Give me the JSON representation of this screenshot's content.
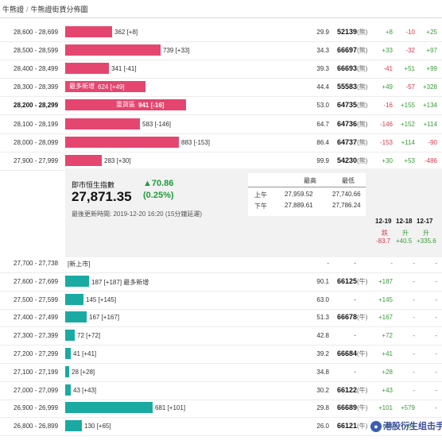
{
  "breadcrumb": {
    "first": "牛熊證",
    "separator": "/",
    "second": "牛熊證街貨分佈圖"
  },
  "upper_rows": [
    {
      "range": "28,600 - 28,699",
      "value": 362,
      "label": "362 [+8]",
      "inside": "",
      "pct": "29.9",
      "code": "52139",
      "tag": "(熊)",
      "c1": "+8",
      "c2": "-10",
      "c3": "+25",
      "bold": false
    },
    {
      "range": "28,500 - 28,599",
      "value": 739,
      "label": "739 [+33]",
      "inside": "",
      "pct": "34.3",
      "code": "66697",
      "tag": "(熊)",
      "c1": "+33",
      "c2": "-32",
      "c3": "+97",
      "bold": false
    },
    {
      "range": "28,400 - 28,499",
      "value": 341,
      "label": "341 [-41]",
      "inside": "",
      "pct": "39.3",
      "code": "66693",
      "tag": "(熊)",
      "c1": "-41",
      "c2": "+51",
      "c3": "+99",
      "bold": false
    },
    {
      "range": "28,300 - 28,399",
      "value": 624,
      "label": "624 [+49]",
      "inside": "最多新增",
      "pct": "44.4",
      "code": "55583",
      "tag": "(熊)",
      "c1": "+49",
      "c2": "-57",
      "c3": "+328",
      "bold": false
    },
    {
      "range": "28,200 - 28,299",
      "value": 941,
      "label": "941 [-16]",
      "inside": "重貨區",
      "pct": "53.0",
      "code": "64735",
      "tag": "(熊)",
      "c1": "-16",
      "c2": "+155",
      "c3": "+134",
      "bold": true
    },
    {
      "range": "28,100 - 28,199",
      "value": 583,
      "label": "583 [-146]",
      "inside": "",
      "pct": "64.7",
      "code": "64736",
      "tag": "(熊)",
      "c1": "-146",
      "c2": "+152",
      "c3": "+114",
      "bold": false
    },
    {
      "range": "28,000 - 28,099",
      "value": 883,
      "label": "883 [-153]",
      "inside": "",
      "pct": "86.4",
      "code": "64737",
      "tag": "(熊)",
      "c1": "-153",
      "c2": "+114",
      "c3": "-90",
      "bold": false
    },
    {
      "range": "27,900 - 27,999",
      "value": 283,
      "label": "283 [+30]",
      "inside": "",
      "pct": "99.9",
      "code": "54230",
      "tag": "(熊)",
      "c1": "+30",
      "c2": "+53",
      "c3": "-486",
      "bold": false
    }
  ],
  "summary": {
    "title": "即市恒生指數",
    "value": "27,871.35",
    "change": "▲70.86",
    "change_pct": "(0.25%)",
    "updated": "最後更新時間: 2019-12-20 16:20 (15分鐘延遲)",
    "hl_header_high": "最高",
    "hl_header_low": "最低",
    "am_label": "上午",
    "am_high": "27,959.52",
    "am_low": "27,740.66",
    "pm_label": "下午",
    "pm_high": "27,889.61",
    "pm_low": "27,786.24",
    "dates": [
      {
        "date": "12-19",
        "label": "跌",
        "change": "-83.7"
      },
      {
        "date": "12-18",
        "label": "升",
        "change": "+40.5"
      },
      {
        "date": "12-17",
        "label": "升",
        "change": "+335.6"
      }
    ]
  },
  "lower_rows": [
    {
      "range": "27,700 - 27,738",
      "value": 0,
      "label": "[新上市]",
      "pct": "-",
      "code": "-",
      "tag": "",
      "c1": "-",
      "c2": "-",
      "c3": "-"
    },
    {
      "range": "27,600 - 27,699",
      "value": 187,
      "label": "187 [+187] 最多新增",
      "pct": "90.1",
      "code": "66125",
      "tag": "(牛)",
      "c1": "+187",
      "c2": "-",
      "c3": "-"
    },
    {
      "range": "27,500 - 27,599",
      "value": 145,
      "label": "145 [+145]",
      "pct": "63.0",
      "code": "-",
      "tag": "",
      "c1": "+145",
      "c2": "-",
      "c3": "-"
    },
    {
      "range": "27,400 - 27,499",
      "value": 167,
      "label": "167 [+167]",
      "pct": "51.3",
      "code": "66678",
      "tag": "(牛)",
      "c1": "+167",
      "c2": "-",
      "c3": "-"
    },
    {
      "range": "27,300 - 27,399",
      "value": 72,
      "label": "72 [+72]",
      "pct": "42.8",
      "code": "-",
      "tag": "",
      "c1": "+72",
      "c2": "-",
      "c3": "-"
    },
    {
      "range": "27,200 - 27,299",
      "value": 41,
      "label": "41 [+41]",
      "pct": "39.2",
      "code": "66684",
      "tag": "(牛)",
      "c1": "+41",
      "c2": "-",
      "c3": "-"
    },
    {
      "range": "27,100 - 27,199",
      "value": 28,
      "label": "28 [+28]",
      "pct": "34.8",
      "code": "-",
      "tag": "",
      "c1": "+28",
      "c2": "-",
      "c3": "-"
    },
    {
      "range": "27,000 - 27,099",
      "value": 43,
      "label": "43 [+43]",
      "pct": "30.2",
      "code": "66122",
      "tag": "(牛)",
      "c1": "+43",
      "c2": "-",
      "c3": "-"
    },
    {
      "range": "26,900 - 26,999",
      "value": 681,
      "label": "681 [+101]",
      "pct": "29.8",
      "code": "66689",
      "tag": "(牛)",
      "c1": "+101",
      "c2": "+579",
      "c3": "-"
    },
    {
      "range": "26,800 - 26,899",
      "value": 130,
      "label": "130 [+65]",
      "pct": "26.0",
      "code": "66121",
      "tag": "(牛)",
      "c1": "+65",
      "c2": "+65",
      "c3": "-"
    }
  ],
  "watermark": "港股衍生组击手",
  "colors": {
    "bear": "#e5466f",
    "bull": "#1aaaa1",
    "up": "#3a9b3a",
    "down": "#d9384a"
  }
}
